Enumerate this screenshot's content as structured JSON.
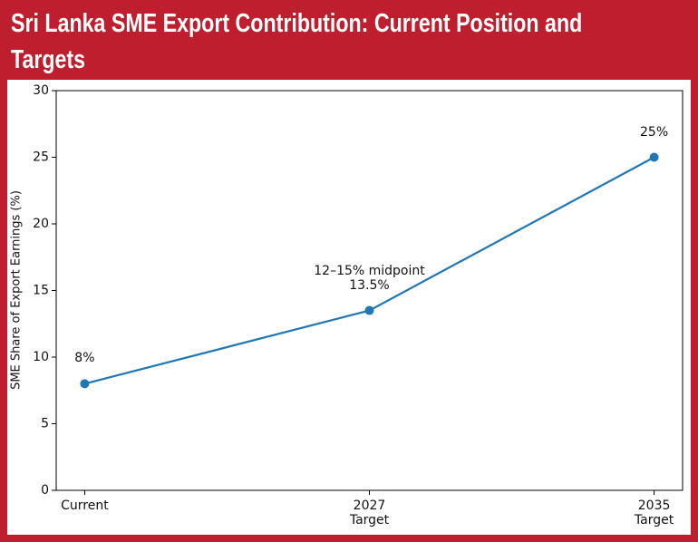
{
  "chart_data": {
    "type": "line",
    "title": "Sri Lanka SME Export Contribution: Current Position and Targets",
    "y_label": "SME Share of Export Earnings (%)",
    "categories": [
      "Current",
      "2027\nTarget",
      "2035\nTarget"
    ],
    "values": [
      8,
      13.5,
      25
    ],
    "value_labels": [
      "8%",
      "12–15% midpoint\n13.5%",
      "25%"
    ],
    "color": "#1f77b4",
    "ylim": [
      0,
      30
    ],
    "yticks": [
      0,
      5,
      10,
      15,
      20,
      25,
      30
    ]
  }
}
